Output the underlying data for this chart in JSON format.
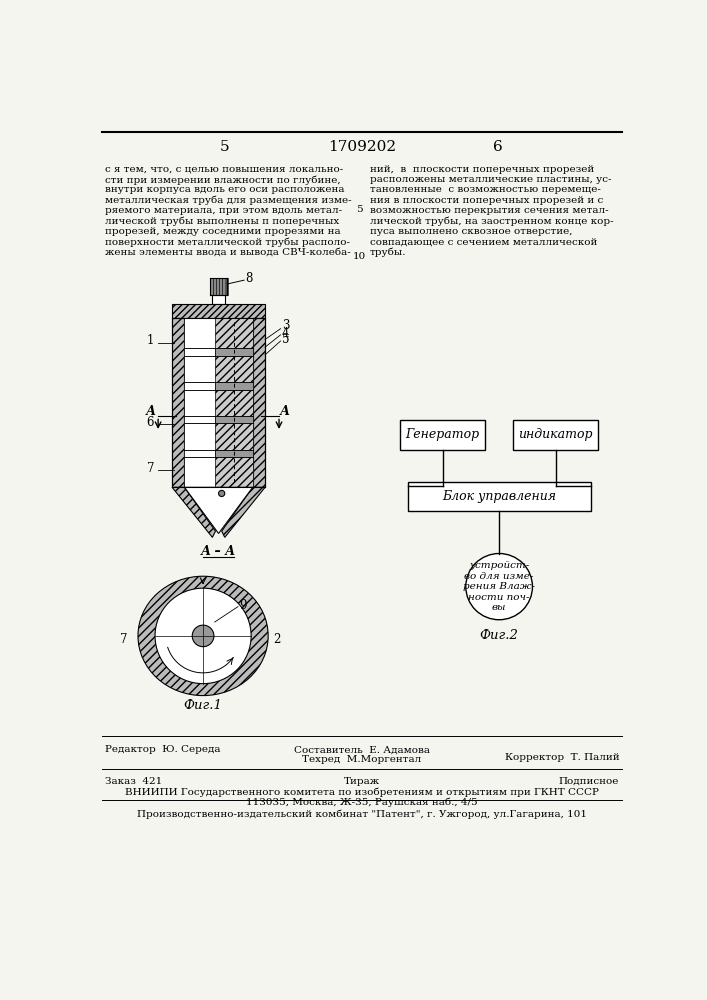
{
  "page_number_left": "5",
  "patent_number": "1709202",
  "page_number_right": "6",
  "left_text_lines": [
    "с я тем, что, с целью повышения локально-",
    "сти при измерении влажности по глубине,",
    "внутри корпуса вдоль его оси расположена",
    "металлическая труба для размещения изме-",
    "ряемого материала, при этом вдоль метал-",
    "лической трубы выполнены п поперечных",
    "прорезей, между соседними прорезями на",
    "поверхности металлической трубы располо-",
    "жены элементы ввода и вывода СВЧ-колеба-"
  ],
  "right_text_lines": [
    "ний,  в  плоскости поперечных прорезей",
    "расположены металлические пластины, ус-",
    "тановленные  с возможностью перемеще-",
    "ния в плоскости поперечных прорезей и с",
    "возможностью перекрытия сечения метал-",
    "лической трубы, на заостренном конце кор-",
    "пуса выполнено сквозное отверстие,",
    "совпадающее с сечением металлической",
    "трубы."
  ],
  "line_number_5": "5",
  "line_number_10": "10",
  "footer_row1_left": "Редактор  Ю. Середа",
  "footer_row1_center1": "Составитель  Е. Адамова",
  "footer_row1_center2": "Техред  М.Моргентал",
  "footer_row1_right": "Корректор  Т. Палий",
  "footer_row2_left": "Заказ  421",
  "footer_row2_center": "Тираж",
  "footer_row2_right": "Подписное",
  "footer_row3": "ВНИИПИ Государственного комитета по изобретениям и открытиям при ГКНТ СССР",
  "footer_row4": "113035, Москва, Ж-35, Раушская наб., 4/5",
  "footer_row5": "Производственно-издательский комбинат \"Патент\", г. Ужгород, ул.Гагарина, 101",
  "fig1_label": "Фиг.1",
  "fig2_label": "Фиг.2",
  "section_label": "А – А",
  "generator_label": "Генератор",
  "indicator_label": "индикатор",
  "control_label": "Блок управления",
  "device_label": "устройст-\nво для изме-\nрения Влаж-\nности поч-\nвы",
  "bg_color": "#f5f5f0",
  "text_color": "#000000"
}
